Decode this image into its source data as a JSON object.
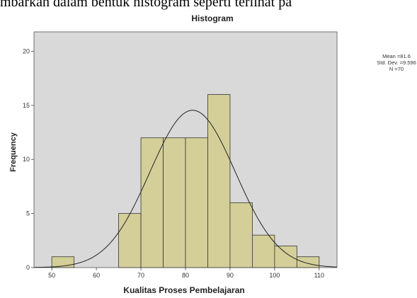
{
  "header_text": "mbarkan dalam bentuk histogram seperti terlihat pa",
  "chart_data": {
    "type": "histogram",
    "title": "Histogram",
    "xlabel": "Kualitas Proses Pembelajaran",
    "ylabel": "Frequency",
    "bins": [
      50,
      55,
      60,
      65,
      70,
      75,
      80,
      85,
      90,
      95,
      100,
      105,
      110
    ],
    "values": [
      1,
      0,
      0,
      5,
      12,
      12,
      12,
      16,
      6,
      3,
      2,
      1
    ],
    "color": "#d4cf98",
    "xlim": [
      46,
      114
    ],
    "ylim": [
      0,
      21.8
    ],
    "xticks": [
      50,
      60,
      70,
      80,
      90,
      100,
      110
    ],
    "yticks": [
      0,
      5,
      10,
      15,
      20
    ],
    "normal_curve": true,
    "stats": {
      "mean": {
        "value": 81.6,
        "label": "Mean =81.6"
      },
      "std_dev": {
        "value": 9.596,
        "label": "Std. Dev. =9.596"
      },
      "n": {
        "value": 70,
        "label": "N =70"
      }
    }
  }
}
